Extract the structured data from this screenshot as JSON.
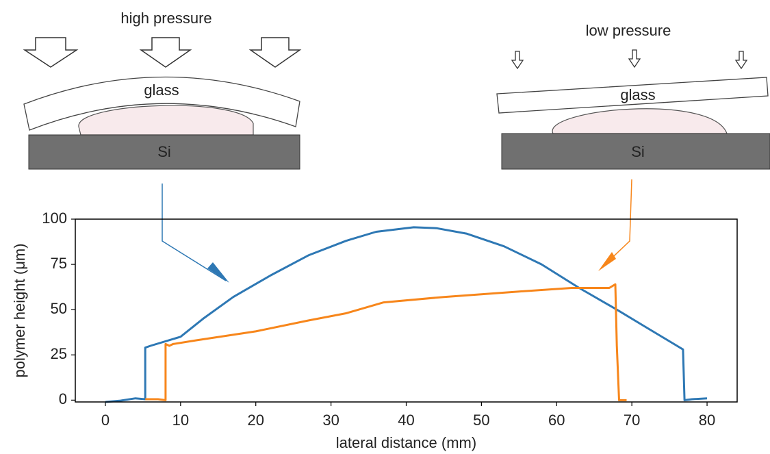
{
  "diagrams": [
    {
      "label": "high pressure",
      "glass": "glass",
      "substrate": "Si"
    },
    {
      "label": "low pressure",
      "glass": "glass",
      "substrate": "Si"
    }
  ],
  "chart_data": {
    "type": "line",
    "xlabel": "lateral distance (mm)",
    "ylabel": "polymer height (μm)",
    "xlim": [
      -4,
      84
    ],
    "ylim": [
      -1,
      100
    ],
    "xticks": [
      0,
      10,
      20,
      30,
      40,
      50,
      60,
      70,
      80
    ],
    "yticks": [
      0,
      25,
      50,
      75,
      100
    ],
    "series": [
      {
        "color": "#2e78b4",
        "x": [
          0,
          2,
          4,
          5.3,
          5.3,
          6,
          10,
          13,
          17,
          22,
          27,
          32,
          36,
          41,
          44,
          48,
          53,
          58,
          63,
          68,
          72,
          76,
          76.8,
          77,
          78,
          80
        ],
        "values": [
          -1,
          -0.3,
          1,
          0.5,
          29,
          30,
          35,
          45,
          57,
          69,
          80,
          88,
          93,
          95.5,
          95,
          92,
          85,
          75,
          62,
          50,
          40,
          30,
          28,
          0,
          0.5,
          1
        ]
      },
      {
        "color": "#f7861b",
        "x": [
          5.3,
          7,
          8,
          8,
          8.5,
          9,
          12,
          20,
          27,
          32,
          37,
          45,
          55,
          62,
          67,
          67.8,
          68,
          68.3,
          69.3
        ],
        "values": [
          0.5,
          0.5,
          0,
          31,
          30,
          31,
          33,
          38,
          44,
          48,
          54,
          57,
          60,
          62,
          62,
          64,
          30,
          0,
          0
        ]
      }
    ]
  }
}
